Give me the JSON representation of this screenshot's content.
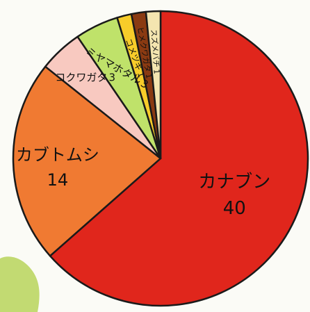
{
  "chart_data": {
    "type": "pie",
    "title": "",
    "slices": [
      {
        "label": "カナブン",
        "value": 40,
        "color": "#e0261c"
      },
      {
        "label": "カブトムシ",
        "value": 14,
        "color": "#f07a32"
      },
      {
        "label": "コクワガタ",
        "value": 3,
        "color": "#f8c9c0"
      },
      {
        "label": "ミヤマホタル",
        "value": 3,
        "color": "#bfe26a"
      },
      {
        "label": "コメツキ",
        "value": 1,
        "color": "#f7cc2a"
      },
      {
        "label": "ヒメクワガタ",
        "value": 1,
        "color": "#8a3a12"
      },
      {
        "label": "スズメバチ",
        "value": 1,
        "color": "#f4e5b0"
      }
    ],
    "value_labels": [
      "40",
      "14",
      "3",
      "3",
      "1",
      "1",
      "1"
    ],
    "start": "12 o'clock",
    "direction": "clockwise",
    "labels_inside_slices": true
  }
}
